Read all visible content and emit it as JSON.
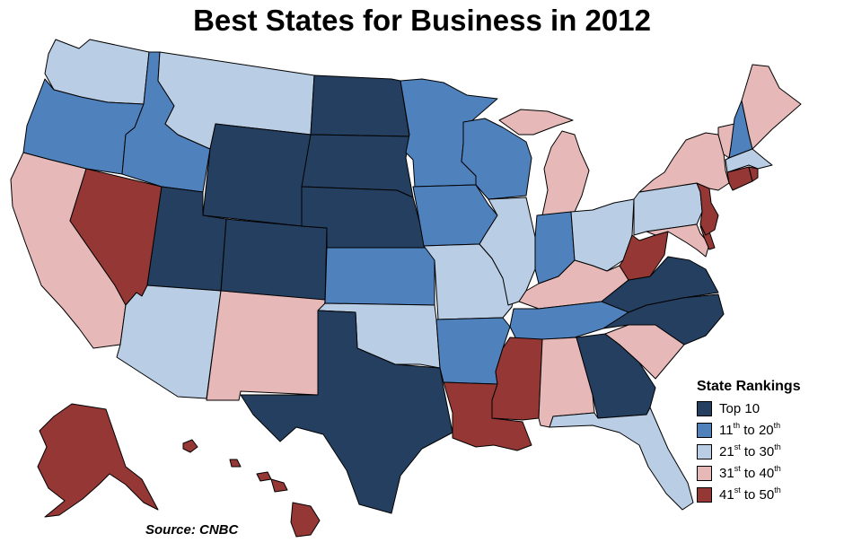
{
  "title": "Best States for Business in 2012",
  "source": "Source: CNBC",
  "legend": {
    "title": "State Rankings",
    "items": [
      {
        "key": "top10",
        "num": "",
        "sup": "",
        "rest": "Top 10",
        "color": "#243F60"
      },
      {
        "key": "r11",
        "num": "11",
        "sup": "th",
        "rest": " to 20th",
        "color": "#4F81BD"
      },
      {
        "key": "r21",
        "num": "21",
        "sup": "st",
        "rest": " to 30th",
        "color": "#B9CDE5"
      },
      {
        "key": "r31",
        "num": "31",
        "sup": "st",
        "rest": " to 40th",
        "color": "#E6B9B8"
      },
      {
        "key": "r41",
        "num": "41",
        "sup": "st",
        "rest": " to 50th",
        "color": "#953735"
      }
    ]
  },
  "states": {
    "WA": "r21",
    "OR": "r11",
    "CA": "r31",
    "NV": "r41",
    "ID": "r11",
    "MT": "r21",
    "WY": "top10",
    "UT": "top10",
    "CO": "top10",
    "AZ": "r21",
    "NM": "r31",
    "ND": "top10",
    "SD": "top10",
    "NE": "top10",
    "KS": "r11",
    "OK": "r21",
    "TX": "top10",
    "MN": "r11",
    "IA": "r11",
    "MO": "r21",
    "AR": "r11",
    "LA": "r41",
    "WI": "r11",
    "IL": "r21",
    "MI": "r31",
    "IN": "r11",
    "OH": "r21",
    "KY": "r31",
    "TN": "r11",
    "MS": "r41",
    "AL": "r31",
    "GA": "top10",
    "FL": "r21",
    "SC": "r31",
    "NC": "top10",
    "VA": "top10",
    "WV": "r41",
    "PA": "r21",
    "NY": "r31",
    "VT": "r31",
    "NH": "r11",
    "ME": "r31",
    "MA": "r21",
    "CT": "r41",
    "RI": "r41",
    "NJ": "r41",
    "DE": "r41",
    "MD": "r31",
    "AK": "r41",
    "HI": "r41"
  }
}
